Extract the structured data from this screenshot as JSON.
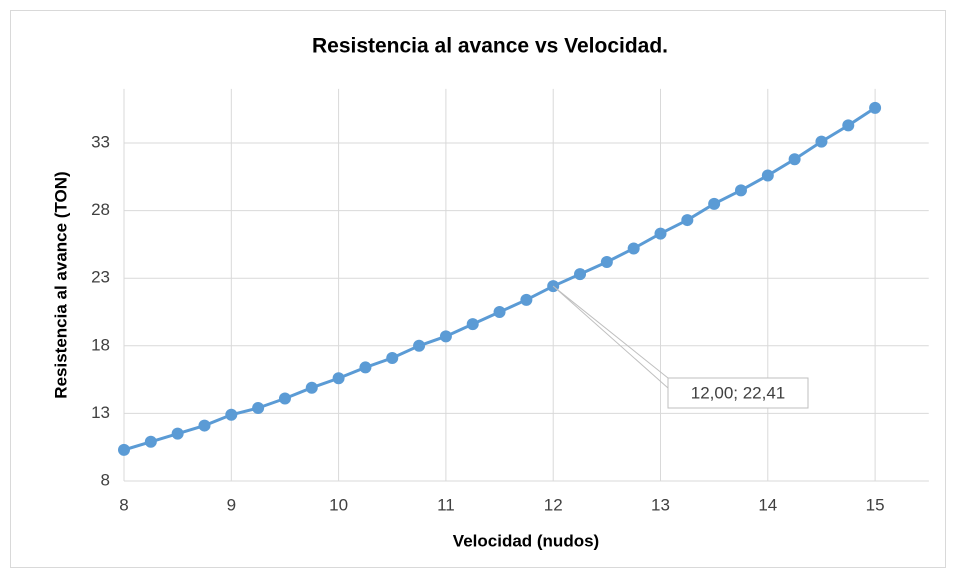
{
  "chart_data": {
    "type": "line",
    "title": "Resistencia al avance vs Velocidad.",
    "x_label": "Velocidad (nudos)",
    "y_label": "Resistencia al avance (TON)",
    "x": [
      8,
      8.25,
      8.5,
      8.75,
      9,
      9.25,
      9.5,
      9.75,
      10,
      10.25,
      10.5,
      10.75,
      11,
      11.25,
      11.5,
      11.75,
      12,
      12.25,
      12.5,
      12.75,
      13,
      13.25,
      13.5,
      13.75,
      14,
      14.25,
      14.5,
      14.75,
      15
    ],
    "series": [
      {
        "name": "Resistencia al avance",
        "color": "#5b9bd5",
        "values": [
          10.3,
          10.9,
          11.5,
          12.1,
          12.9,
          13.4,
          14.1,
          14.9,
          15.6,
          16.4,
          17.1,
          18.0,
          18.7,
          19.6,
          20.5,
          21.4,
          22.41,
          23.3,
          24.2,
          25.2,
          26.3,
          27.3,
          28.5,
          29.5,
          30.6,
          31.8,
          33.1,
          34.3,
          35.6
        ]
      }
    ],
    "xlim": [
      8,
      15.5
    ],
    "xticks": [
      8,
      9,
      10,
      11,
      12,
      13,
      14,
      15
    ],
    "ylim": [
      8,
      37
    ],
    "yticks": [
      8,
      13,
      18,
      23,
      28,
      33
    ],
    "grid": true,
    "annotation": {
      "x": 12,
      "y": 22.41,
      "label": "12,00; 22,41"
    }
  }
}
